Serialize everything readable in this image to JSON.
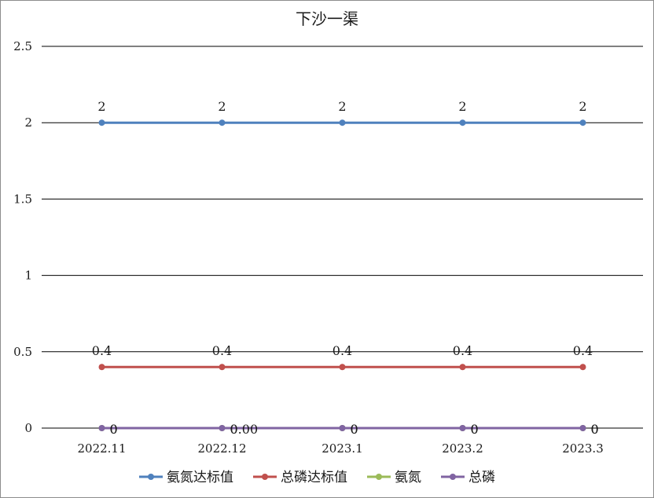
{
  "chart_data": {
    "type": "line",
    "title": "下沙一渠",
    "xlabel": "",
    "ylabel": "",
    "categories": [
      "2022.11",
      "2022.12",
      "2023.1",
      "2023.2",
      "2023.3"
    ],
    "ylim": [
      0,
      2.5
    ],
    "yticks": [
      0,
      0.5,
      1,
      1.5,
      2,
      2.5
    ],
    "ytick_labels": [
      "0",
      "0.5",
      "1",
      "1.5",
      "2",
      "2.5"
    ],
    "grid": true,
    "legend_position": "bottom",
    "series": [
      {
        "name": "氨氮达标值",
        "color": "#4f81bd",
        "values": [
          2,
          2,
          2,
          2,
          2
        ],
        "labels": [
          "2",
          "2",
          "2",
          "2",
          "2"
        ]
      },
      {
        "name": "总磷达标值",
        "color": "#c0504d",
        "values": [
          0.4,
          0.4,
          0.4,
          0.4,
          0.4
        ],
        "labels": [
          "0.4",
          "0.4",
          "0.4",
          "0.4",
          "0.4"
        ]
      },
      {
        "name": "氨氮",
        "color": "#9bbb59",
        "values": [
          0,
          0,
          0,
          0,
          0
        ],
        "labels": [
          "0",
          "0",
          "0",
          "0",
          "0"
        ]
      },
      {
        "name": "总磷",
        "color": "#8064a2",
        "values": [
          0,
          0,
          0,
          0,
          0
        ],
        "labels": [
          "0",
          "0.00",
          "0",
          "0",
          "0"
        ]
      }
    ]
  }
}
